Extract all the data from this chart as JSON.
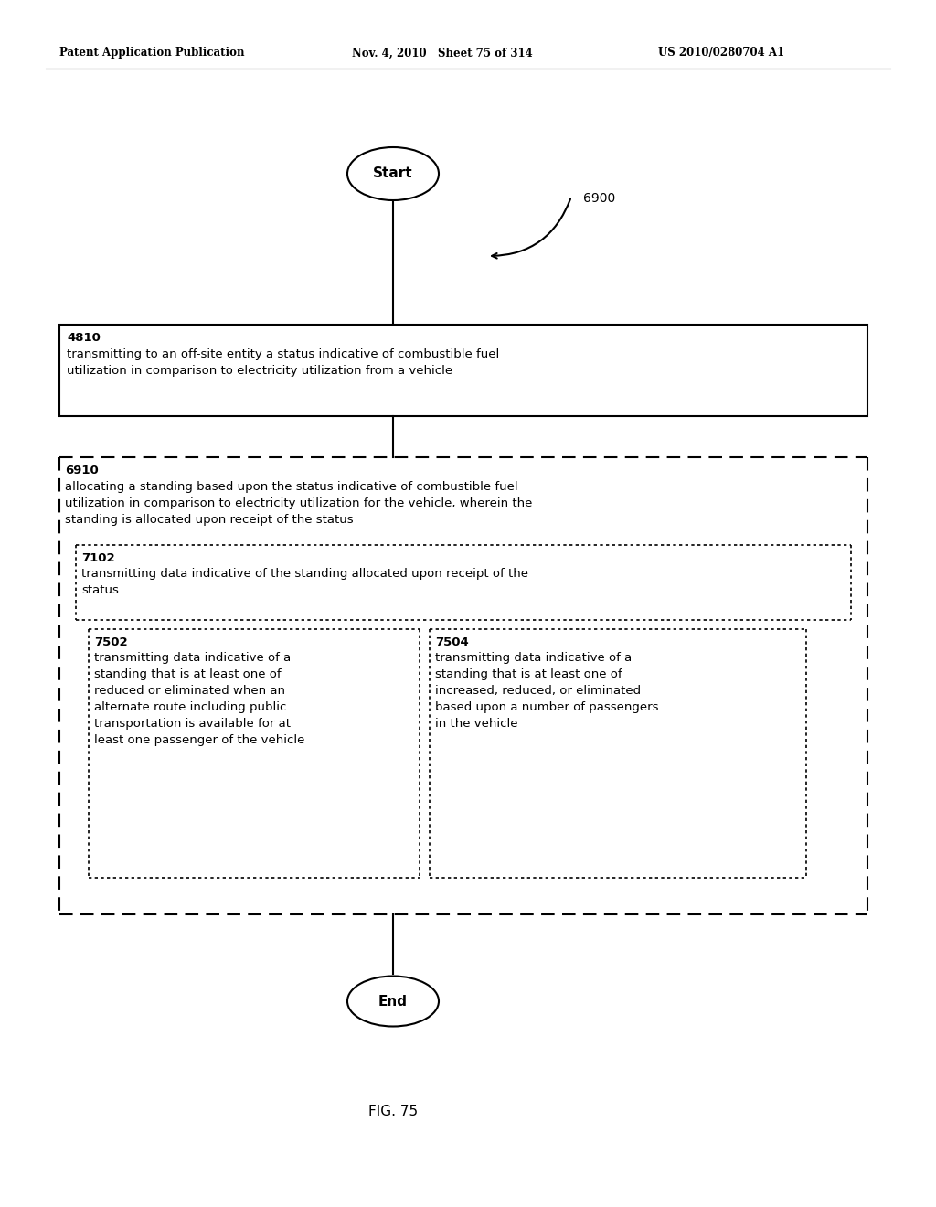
{
  "header_left": "Patent Application Publication",
  "header_middle": "Nov. 4, 2010   Sheet 75 of 314",
  "header_right": "US 2010/0280704 A1",
  "footer": "FIG. 75",
  "background": "#ffffff",
  "start_label": "Start",
  "end_label": "End",
  "label_6900": "6900",
  "box4810_id": "4810",
  "box4810_text": "transmitting to an off-site entity a status indicative of combustible fuel\nutilization in comparison to electricity utilization from a vehicle",
  "box6910_id": "6910",
  "box6910_text": "allocating a standing based upon the status indicative of combustible fuel\nutilization in comparison to electricity utilization for the vehicle, wherein the\nstanding is allocated upon receipt of the status",
  "box7102_id": "7102",
  "box7102_text": "transmitting data indicative of the standing allocated upon receipt of the\nstatus",
  "box7502_id": "7502",
  "box7502_text": "transmitting data indicative of a\nstanding that is at least one of\nreduced or eliminated when an\nalternate route including public\ntransportation is available for at\nleast one passenger of the vehicle",
  "box7504_id": "7504",
  "box7504_text": "transmitting data indicative of a\nstanding that is at least one of\nincreased, reduced, or eliminated\nbased upon a number of passengers\nin the vehicle",
  "text_color": "#000000",
  "box_edge_color": "#000000"
}
